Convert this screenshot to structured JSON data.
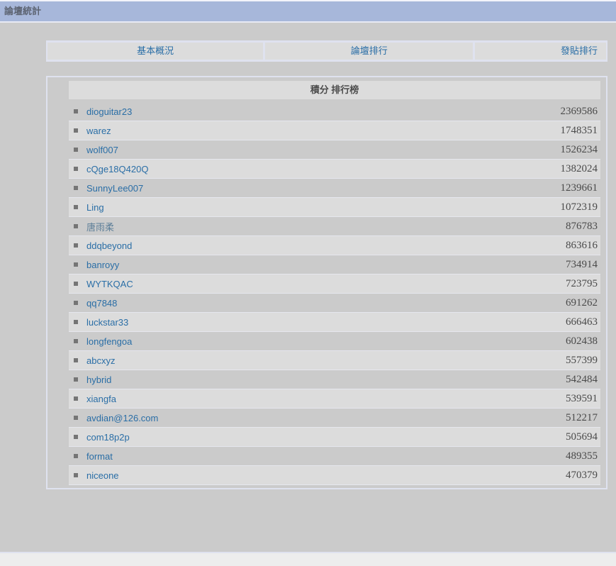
{
  "header": {
    "title": "論壇統計"
  },
  "tabs": [
    {
      "label": "基本概況"
    },
    {
      "label": "論壇排行"
    },
    {
      "label": "發貼排行"
    }
  ],
  "panel": {
    "title": "積分 排行榜"
  },
  "ranking": [
    {
      "name": "dioguitar23",
      "score": "2369586",
      "visited": false
    },
    {
      "name": "warez",
      "score": "1748351",
      "visited": false
    },
    {
      "name": "wolf007",
      "score": "1526234",
      "visited": false
    },
    {
      "name": "cQge18Q420Q",
      "score": "1382024",
      "visited": false
    },
    {
      "name": "SunnyLee007",
      "score": "1239661",
      "visited": false
    },
    {
      "name": "Ling",
      "score": "1072319",
      "visited": false
    },
    {
      "name": "唐雨柔",
      "score": "876783",
      "visited": true
    },
    {
      "name": "ddqbeyond",
      "score": "863616",
      "visited": false
    },
    {
      "name": "banroyy",
      "score": "734914",
      "visited": false
    },
    {
      "name": "WYTKQAC",
      "score": "723795",
      "visited": false
    },
    {
      "name": "qq7848",
      "score": "691262",
      "visited": false
    },
    {
      "name": "luckstar33",
      "score": "666463",
      "visited": false
    },
    {
      "name": "longfengoa",
      "score": "602438",
      "visited": false
    },
    {
      "name": "abcxyz",
      "score": "557399",
      "visited": false
    },
    {
      "name": "hybrid",
      "score": "542484",
      "visited": false
    },
    {
      "name": "xiangfa",
      "score": "539591",
      "visited": false
    },
    {
      "name": "avdian@126.com",
      "score": "512217",
      "visited": false
    },
    {
      "name": "com18p2p",
      "score": "505694",
      "visited": false
    },
    {
      "name": "format",
      "score": "489355",
      "visited": false
    },
    {
      "name": "niceone",
      "score": "470379",
      "visited": false
    }
  ],
  "colors": {
    "header_bg": "#a7b7da",
    "page_bg": "#cbcbcb",
    "border": "#dfe2ef",
    "link": "#2a6ea6",
    "row_even": "#dcdcdc",
    "row_odd": "#cbcbcb"
  }
}
